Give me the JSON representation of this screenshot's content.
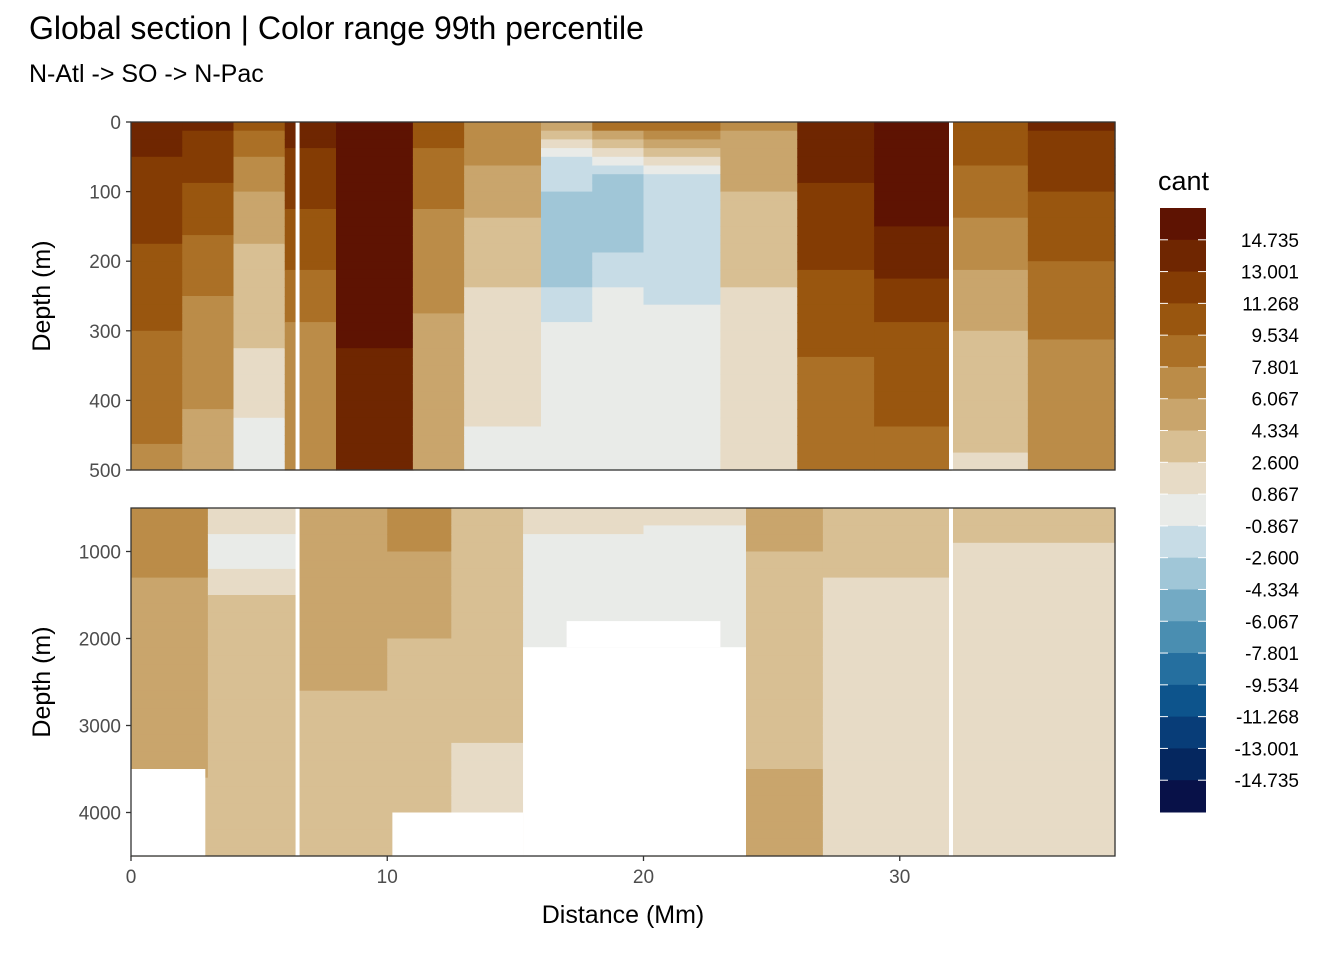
{
  "chart_data": {
    "type": "heatmap",
    "title": "Global section | Color range 99th percentile",
    "subtitle": "N-Atl -> SO -> N-Pac",
    "xlabel": "Distance (Mm)",
    "ylabel": "Depth (m)",
    "x_ticks": [
      0,
      10,
      20,
      30
    ],
    "xlim": [
      0,
      38.4
    ],
    "panels": [
      {
        "name": "upper",
        "ylim": [
          0,
          500
        ],
        "y_ticks": [
          0,
          100,
          200,
          300,
          400,
          500
        ],
        "y_reversed": true,
        "columns": [
          {
            "x": [
              0,
              2
            ],
            "profile": [
              [
                0,
                14.0
              ],
              [
                60,
                12.0
              ],
              [
                200,
                10.0
              ],
              [
                350,
                8.0
              ],
              [
                500,
                6.5
              ]
            ]
          },
          {
            "x": [
              2,
              4
            ],
            "profile": [
              [
                0,
                12.5
              ],
              [
                150,
                9.0
              ],
              [
                300,
                6.0
              ],
              [
                500,
                4.5
              ]
            ]
          },
          {
            "x": [
              4,
              6
            ],
            "profile": [
              [
                0,
                9.0
              ],
              [
                100,
                5.0
              ],
              [
                200,
                3.0
              ],
              [
                350,
                1.5
              ],
              [
                500,
                -1.5
              ]
            ]
          },
          {
            "x": [
              6,
              8
            ],
            "profile": [
              [
                0,
                13.0
              ],
              [
                150,
                10.0
              ],
              [
                300,
                6.5
              ],
              [
                500,
                5.5
              ]
            ]
          },
          {
            "x": [
              8,
              11
            ],
            "profile": [
              [
                0,
                15.0
              ],
              [
                200,
                14.5
              ],
              [
                400,
                13.5
              ],
              [
                500,
                13.0
              ]
            ]
          },
          {
            "x": [
              11,
              13
            ],
            "profile": [
              [
                0,
                9.5
              ],
              [
                150,
                6.5
              ],
              [
                300,
                5.0
              ],
              [
                500,
                3.5
              ]
            ]
          },
          {
            "x": [
              13,
              16
            ],
            "profile": [
              [
                0,
                7.0
              ],
              [
                100,
                4.0
              ],
              [
                250,
                1.5
              ],
              [
                500,
                -0.5
              ]
            ]
          },
          {
            "x": [
              16,
              18
            ],
            "profile": [
              [
                0,
                5.5
              ],
              [
                60,
                -3.0
              ],
              [
                200,
                -4.5
              ],
              [
                300,
                -1.5
              ],
              [
                500,
                -0.5
              ]
            ]
          },
          {
            "x": [
              18,
              20
            ],
            "profile": [
              [
                0,
                8.0
              ],
              [
                70,
                -3.5
              ],
              [
                150,
                -4.5
              ],
              [
                250,
                -1.5
              ],
              [
                500,
                -0.5
              ]
            ]
          },
          {
            "x": [
              20,
              23
            ],
            "profile": [
              [
                0,
                8.0
              ],
              [
                80,
                -2.0
              ],
              [
                200,
                -3.0
              ],
              [
                300,
                -1.0
              ],
              [
                500,
                -0.5
              ]
            ]
          },
          {
            "x": [
              23,
              26
            ],
            "profile": [
              [
                0,
                5.5
              ],
              [
                150,
                2.5
              ],
              [
                300,
                1.2
              ],
              [
                500,
                0.5
              ]
            ]
          },
          {
            "x": [
              26,
              29
            ],
            "profile": [
              [
                0,
                13.5
              ],
              [
                200,
                10.5
              ],
              [
                350,
                8.5
              ],
              [
                500,
                7.5
              ]
            ]
          },
          {
            "x": [
              29,
              32
            ],
            "profile": [
              [
                0,
                15.0
              ],
              [
                150,
                14.0
              ],
              [
                300,
                10.0
              ],
              [
                500,
                8.0
              ]
            ]
          },
          {
            "x": [
              32,
              35
            ],
            "profile": [
              [
                0,
                10.5
              ],
              [
                150,
                6.5
              ],
              [
                300,
                3.5
              ],
              [
                500,
                1.5
              ]
            ]
          },
          {
            "x": [
              35,
              38.4
            ],
            "profile": [
              [
                0,
                12.5
              ],
              [
                150,
                9.5
              ],
              [
                300,
                7.0
              ],
              [
                500,
                5.5
              ]
            ]
          }
        ]
      },
      {
        "name": "lower",
        "ylim": [
          500,
          4500
        ],
        "y_ticks": [
          1000,
          2000,
          3000,
          4000
        ],
        "y_reversed": true,
        "columns": [
          {
            "x": [
              0,
              3
            ],
            "profile": [
              [
                500,
                6.0
              ],
              [
                1500,
                5.0
              ],
              [
                2500,
                4.0
              ],
              [
                4500,
                3.0
              ]
            ]
          },
          {
            "x": [
              3,
              6.5
            ],
            "profile": [
              [
                500,
                2.0
              ],
              [
                1000,
                -1.0
              ],
              [
                1500,
                2.0
              ],
              [
                2500,
                3.0
              ],
              [
                4500,
                2.5
              ]
            ]
          },
          {
            "x": [
              6.5,
              10
            ],
            "profile": [
              [
                500,
                5.0
              ],
              [
                1500,
                4.5
              ],
              [
                2500,
                3.5
              ],
              [
                4500,
                3.0
              ]
            ]
          },
          {
            "x": [
              10,
              12.5
            ],
            "profile": [
              [
                500,
                6.5
              ],
              [
                1500,
                4.0
              ],
              [
                2500,
                3.0
              ],
              [
                4500,
                2.0
              ]
            ]
          },
          {
            "x": [
              12.5,
              15.3
            ],
            "profile": [
              [
                500,
                3.0
              ],
              [
                1500,
                2.0
              ],
              [
                2500,
                2.0
              ],
              [
                4500,
                1.2
              ]
            ]
          },
          {
            "x": [
              15.3,
              20
            ],
            "profile": [
              [
                500,
                1.0
              ],
              [
                1200,
                -1.0
              ],
              [
                2000,
                -1.5
              ],
              [
                4500,
                0.5
              ]
            ]
          },
          {
            "x": [
              20,
              24
            ],
            "profile": [
              [
                500,
                0.5
              ],
              [
                1500,
                -1.5
              ],
              [
                2500,
                0.5
              ],
              [
                4500,
                3.0
              ]
            ]
          },
          {
            "x": [
              24,
              27
            ],
            "profile": [
              [
                500,
                4.0
              ],
              [
                1500,
                3.0
              ],
              [
                2500,
                2.5
              ],
              [
                4500,
                4.5
              ]
            ]
          },
          {
            "x": [
              27,
              32
            ],
            "profile": [
              [
                500,
                3.0
              ],
              [
                1500,
                1.5
              ],
              [
                2500,
                0.5
              ],
              [
                4500,
                0.3
              ]
            ]
          },
          {
            "x": [
              32,
              38.4
            ],
            "profile": [
              [
                500,
                2.5
              ],
              [
                1500,
                0.5
              ],
              [
                2500,
                0.2
              ],
              [
                4500,
                0.2
              ]
            ]
          }
        ],
        "masks": [
          {
            "x": [
              15.3,
              24
            ],
            "depth": [
              2100,
              4500
            ]
          },
          {
            "x": [
              17,
              23
            ],
            "depth": [
              1800,
              2100
            ]
          },
          {
            "x": [
              0,
              2.9
            ],
            "depth": [
              3500,
              4500
            ]
          },
          {
            "x": [
              10.2,
              15.3
            ],
            "depth": [
              4000,
              4500
            ]
          }
        ]
      }
    ],
    "gaps_x": [
      6.5,
      32.0
    ],
    "colorbar": {
      "title": "cant",
      "labels": [
        "14.735",
        "13.001",
        "11.268",
        "9.534",
        "7.801",
        "6.067",
        "4.334",
        "2.600",
        "0.867",
        "-0.867",
        "-2.600",
        "-4.334",
        "-6.067",
        "-7.801",
        "-9.534",
        "-11.268",
        "-13.001",
        "-14.735"
      ],
      "colors": [
        "#5e1302",
        "#6f2601",
        "#843c04",
        "#99560f",
        "#ab7026",
        "#bb8c48",
        "#c9a56c",
        "#d8bf93",
        "#e7dbc6",
        "#e9ebe8",
        "#c7dce6",
        "#a0c6d7",
        "#73aac4",
        "#4a8eb1",
        "#256f9f",
        "#0d548c",
        "#083d78",
        "#05275f",
        "#081148"
      ],
      "breaks": [
        15.602,
        13.868,
        12.135,
        10.401,
        8.668,
        6.934,
        5.201,
        3.467,
        1.733,
        0.0,
        -1.733,
        -3.467,
        -5.201,
        -6.934,
        -8.668,
        -10.401,
        -12.135,
        -13.868,
        -15.602
      ]
    }
  }
}
